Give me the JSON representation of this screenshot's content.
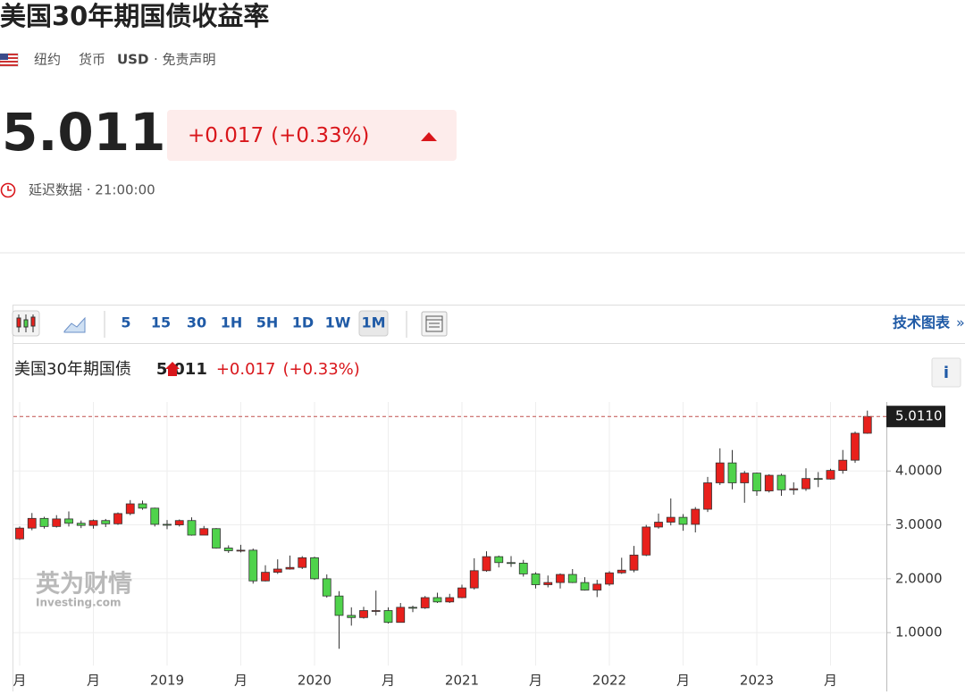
{
  "header": {
    "title": "美国30年期国债收益率",
    "location": "纽约",
    "currency_label": "货币",
    "currency": "USD",
    "disclaimer": "· 免责声明"
  },
  "quote": {
    "price": "5.011",
    "change": "+0.017",
    "change_pct": "(+0.33%)",
    "delay": "延迟数据 · 21:00:00"
  },
  "toolbar": {
    "intervals": [
      "5",
      "15",
      "30",
      "1H",
      "5H",
      "1D",
      "1W",
      "1M"
    ],
    "active": "1M",
    "tech_chart": "技术图表",
    "more": "»"
  },
  "chart_data": {
    "type": "candlestick",
    "title": "美国30年期国债",
    "info": "i",
    "watermark": [
      "英为财情",
      "Investing.com"
    ],
    "categories": [
      "月",
      null,
      null,
      null,
      null,
      null,
      "月",
      null,
      null,
      null,
      null,
      null,
      "2019",
      null,
      null,
      null,
      null,
      null,
      "月",
      null,
      null,
      null,
      null,
      null,
      "2020",
      null,
      null,
      null,
      null,
      null,
      "月",
      null,
      null,
      null,
      null,
      null,
      "2021",
      null,
      null,
      null,
      null,
      null,
      "月",
      null,
      null,
      null,
      null,
      null,
      "2022",
      null,
      null,
      null,
      null,
      null,
      "月",
      null,
      null,
      null,
      null,
      null,
      "2023",
      null,
      null,
      null,
      null,
      null,
      "月",
      null,
      null,
      null
    ],
    "open": [
      2.74,
      2.94,
      3.12,
      2.97,
      3.11,
      3.03,
      2.99,
      3.08,
      3.02,
      3.21,
      3.39,
      3.31,
      3.01,
      3.0,
      3.08,
      2.81,
      2.93,
      2.57,
      2.52,
      2.53,
      1.96,
      2.12,
      2.18,
      2.21,
      2.39,
      2.0,
      1.68,
      1.32,
      1.28,
      1.41,
      1.41,
      1.19,
      1.47,
      1.46,
      1.65,
      1.57,
      1.65,
      1.83,
      2.15,
      2.41,
      2.3,
      2.29,
      2.09,
      1.89,
      1.93,
      2.08,
      1.93,
      1.79,
      1.9,
      2.11,
      2.16,
      2.44,
      2.96,
      3.05,
      3.14,
      3.01,
      3.29,
      3.78,
      4.15,
      3.78,
      3.96,
      3.63,
      3.92,
      3.65,
      3.67,
      3.86,
      3.85,
      4.01,
      4.2,
      4.7
    ],
    "high": [
      2.97,
      3.22,
      3.15,
      3.18,
      3.25,
      3.08,
      3.1,
      3.11,
      3.23,
      3.46,
      3.45,
      3.32,
      3.09,
      3.1,
      3.14,
      2.98,
      2.94,
      2.62,
      2.63,
      2.56,
      2.25,
      2.36,
      2.43,
      2.42,
      2.41,
      2.08,
      1.77,
      1.47,
      1.48,
      1.78,
      1.47,
      1.55,
      1.5,
      1.68,
      1.74,
      1.72,
      1.89,
      2.38,
      2.51,
      2.43,
      2.42,
      2.35,
      2.12,
      2.06,
      2.1,
      2.18,
      2.03,
      1.98,
      2.14,
      2.39,
      2.61,
      3.0,
      3.21,
      3.49,
      3.2,
      3.33,
      3.89,
      4.42,
      4.39,
      4.0,
      3.97,
      3.94,
      3.95,
      3.79,
      4.05,
      3.98,
      4.04,
      4.39,
      4.73,
      5.12
    ],
    "low": [
      2.72,
      2.9,
      2.93,
      2.95,
      2.97,
      2.94,
      2.93,
      2.96,
      3.0,
      3.18,
      3.28,
      2.97,
      2.92,
      2.97,
      2.8,
      2.81,
      2.56,
      2.48,
      2.49,
      1.91,
      1.95,
      2.09,
      2.17,
      2.18,
      1.98,
      1.65,
      0.7,
      1.13,
      1.26,
      1.32,
      1.17,
      1.19,
      1.38,
      1.44,
      1.55,
      1.55,
      1.64,
      1.8,
      2.13,
      2.21,
      2.22,
      2.04,
      1.82,
      1.84,
      1.82,
      1.92,
      1.78,
      1.66,
      1.87,
      2.09,
      2.12,
      2.42,
      2.93,
      2.99,
      2.89,
      2.86,
      3.24,
      3.74,
      3.66,
      3.41,
      3.54,
      3.6,
      3.54,
      3.56,
      3.63,
      3.7,
      3.84,
      3.95,
      4.15,
      4.69
    ],
    "close": [
      2.94,
      3.12,
      2.97,
      3.11,
      3.03,
      2.99,
      3.08,
      3.02,
      3.21,
      3.39,
      3.31,
      3.01,
      3.0,
      3.08,
      2.81,
      2.93,
      2.57,
      2.52,
      2.53,
      1.96,
      2.12,
      2.18,
      2.21,
      2.39,
      2.0,
      1.68,
      1.32,
      1.28,
      1.41,
      1.41,
      1.19,
      1.47,
      1.46,
      1.65,
      1.57,
      1.65,
      1.83,
      2.15,
      2.41,
      2.3,
      2.29,
      2.09,
      1.89,
      1.93,
      2.08,
      1.93,
      1.79,
      1.9,
      2.11,
      2.16,
      2.44,
      2.96,
      3.05,
      3.14,
      3.01,
      3.29,
      3.78,
      4.15,
      3.78,
      3.96,
      3.63,
      3.92,
      3.65,
      3.67,
      3.86,
      3.85,
      4.01,
      4.2,
      4.7,
      5.011
    ],
    "ylim": [
      0.39,
      5.28
    ],
    "yticks": [
      {
        "value": 1,
        "label": "1.0000"
      },
      {
        "value": 2,
        "label": "2.0000"
      },
      {
        "value": 3,
        "label": "3.0000"
      },
      {
        "value": 4,
        "label": "4.0000"
      }
    ],
    "last_label": {
      "value": 5.011,
      "label": "5.0110"
    },
    "up_color": "#e8201c",
    "down_color": "#4fd34b",
    "grid": true
  }
}
